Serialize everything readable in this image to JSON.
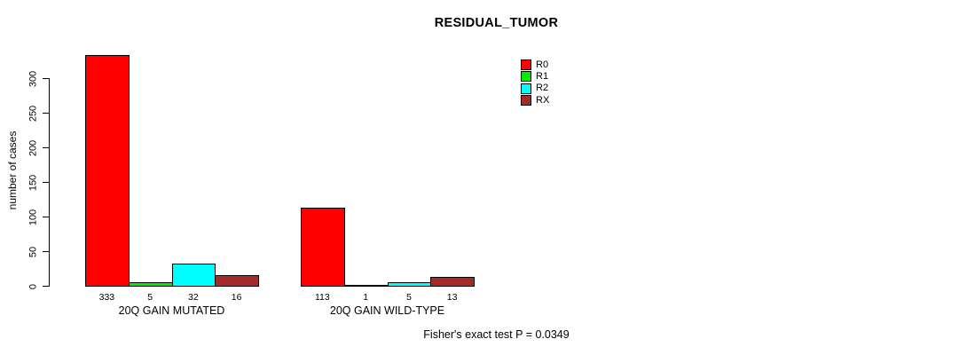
{
  "annotation": "Fisher's exact test P = 0.0349",
  "chart_data": {
    "type": "bar",
    "title": "RESIDUAL_TUMOR",
    "xlabel": "",
    "ylabel": "number of cases",
    "ylim": [
      0,
      300
    ],
    "yticks": [
      0,
      50,
      100,
      150,
      200,
      250,
      300
    ],
    "grid": false,
    "legend_position": "top-right-inside",
    "categories": [
      "20Q GAIN MUTATED",
      "20Q GAIN WILD-TYPE"
    ],
    "series": [
      {
        "name": "R0",
        "color": "#ff0000",
        "values": [
          333,
          113
        ]
      },
      {
        "name": "R1",
        "color": "#00ee00",
        "values": [
          5,
          1
        ]
      },
      {
        "name": "R2",
        "color": "#00ffff",
        "values": [
          32,
          5
        ]
      },
      {
        "name": "RX",
        "color": "#a52a2a",
        "values": [
          16,
          13
        ]
      }
    ],
    "bar_value_labels": [
      [
        333,
        5,
        32,
        16
      ],
      [
        113,
        1,
        5,
        13
      ]
    ]
  }
}
